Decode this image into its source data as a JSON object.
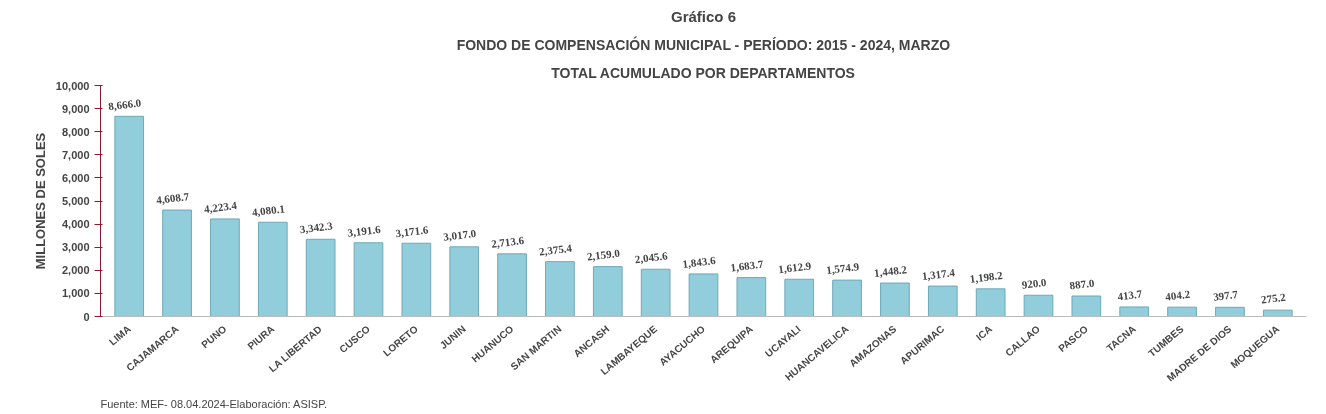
{
  "chart_data": {
    "type": "bar",
    "title": "FONDO DE COMPENSACIÓN MUNICIPAL - PERÍODO: 2015 - 2024, MARZO",
    "subtitle": "TOTAL ACUMULADO POR DEPARTAMENTOS",
    "ylabel": "MILLONES DE SOLES",
    "annotations": [
      "Gráfico 6",
      "Fuente:  MEF- 08.04.2024-Elaboración: ASISP."
    ],
    "categories": [
      "LIMA",
      "CAJAMARCA",
      "PUNO",
      "PIURA",
      "LA LIBERTAD",
      "CUSCO",
      "LORETO",
      "JUNIN",
      "HUANUCO",
      "SAN MARTIN",
      "ANCASH",
      "LAMBAYEQUE",
      "AYACUCHO",
      "AREQUIPA",
      "UCAYALI",
      "HUANCAVELICA",
      "AMAZONAS",
      "APURIMAC",
      "ICA",
      "CALLAO",
      "PASCO",
      "TACNA",
      "TUMBES",
      "MADRE DE DIOS",
      "MOQUEGUA"
    ],
    "values": [
      8666.0,
      4608.7,
      4223.4,
      4080.1,
      3342.3,
      3191.6,
      3171.6,
      3017.0,
      2713.6,
      2375.4,
      2159.0,
      2045.6,
      1843.6,
      1683.7,
      1612.9,
      1574.9,
      1448.2,
      1317.4,
      1198.2,
      920.0,
      887.0,
      413.7,
      404.2,
      397.7,
      275.2
    ],
    "value_labels": [
      "8,666.0",
      "4,608.7",
      "4,223.4",
      "4,080.1",
      "3,342.3",
      "3,191.6",
      "3,171.6",
      "3,017.0",
      "2,713.6",
      "2,375.4",
      "2,159.0",
      "2,045.6",
      "1,843.6",
      "1,683.7",
      "1,612.9",
      "1,574.9",
      "1,448.2",
      "1,317.4",
      "1,198.2",
      "920.0",
      "887.0",
      "413.7",
      "404.2",
      "397.7",
      "275.2"
    ],
    "color": "#92cddc",
    "ylim": [
      0,
      10000
    ],
    "yticks": [
      0,
      {
        "value": 1000,
        "label": "1,000"
      },
      {
        "value": 2000,
        "label": "2,000"
      },
      {
        "value": 3000,
        "label": "3,000"
      },
      {
        "value": 4000,
        "label": "4,000"
      },
      {
        "value": 5000,
        "label": "5,000"
      },
      {
        "value": 6000,
        "label": "6,000"
      },
      {
        "value": 7000,
        "label": "7,000"
      },
      {
        "value": 8000,
        "label": "8,000"
      },
      {
        "value": 9000,
        "label": "9,000"
      },
      {
        "value": 10000,
        "label": "10,000"
      }
    ],
    "grid": false
  }
}
